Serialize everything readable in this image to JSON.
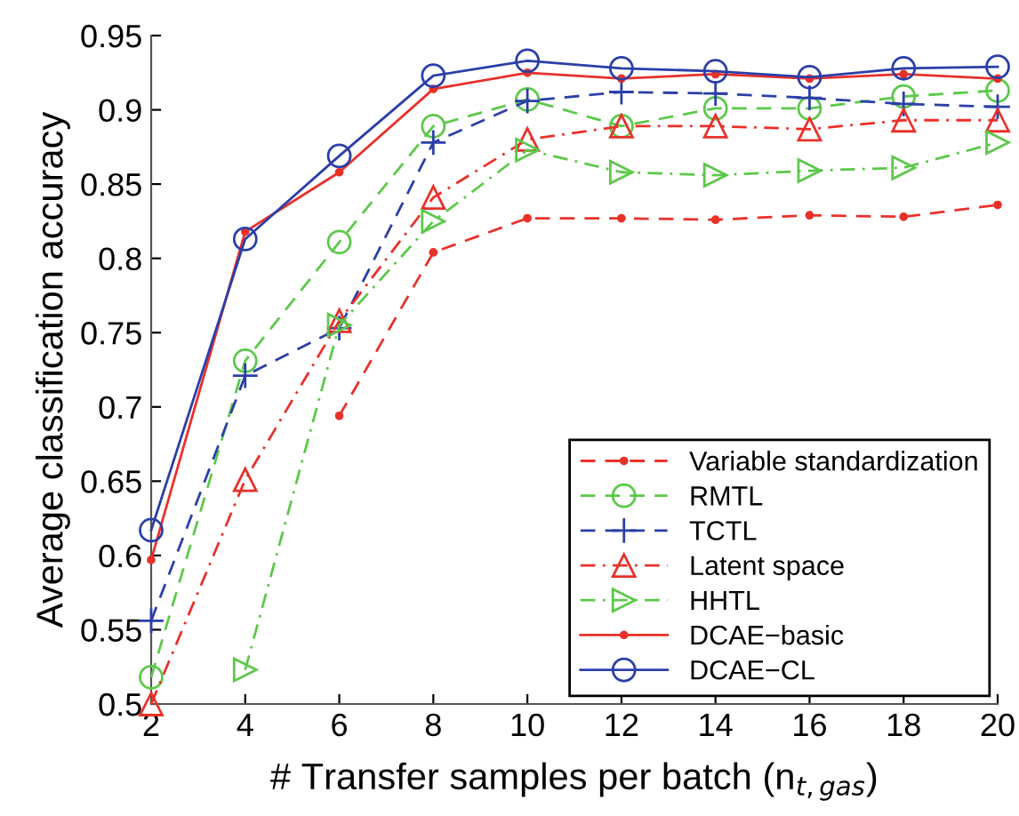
{
  "chart_data": {
    "type": "line",
    "xlabel": "# Transfer samples per batch (n$_{t,gas}$)",
    "ylabel": "Average classification accuracy",
    "x": [
      2,
      4,
      6,
      8,
      10,
      12,
      14,
      16,
      18,
      20
    ],
    "xlim": [
      2,
      20
    ],
    "xticks": [
      2,
      4,
      6,
      8,
      10,
      12,
      14,
      16,
      18,
      20
    ],
    "ylim": [
      0.5,
      0.95
    ],
    "yticks": [
      0.5,
      0.55,
      0.6,
      0.65,
      0.7,
      0.75,
      0.8,
      0.85,
      0.9,
      0.95
    ],
    "grid": false,
    "legend": "bottom right",
    "series": [
      {
        "name": "Variable standardization",
        "color": "#e8312a",
        "marker": "point",
        "line_style": "dashed",
        "values": [
          null,
          null,
          0.694,
          0.804,
          0.827,
          0.827,
          0.826,
          0.829,
          0.828,
          0.836
        ]
      },
      {
        "name": "RMTL",
        "color": "#5cc84a",
        "marker": "circle",
        "line_style": "dashed",
        "values": [
          0.518,
          0.731,
          0.811,
          0.889,
          0.907,
          0.889,
          0.901,
          0.901,
          0.909,
          0.913
        ]
      },
      {
        "name": "TCTL",
        "color": "#2b3fa8",
        "marker": "plus",
        "line_style": "dashed",
        "values": [
          0.556,
          0.721,
          0.753,
          0.878,
          0.906,
          0.912,
          0.911,
          0.908,
          0.904,
          0.902
        ]
      },
      {
        "name": "Latent space",
        "color": "#e8312a",
        "marker": "triangle",
        "line_style": "dashdot",
        "values": [
          0.5,
          0.651,
          0.758,
          0.841,
          0.88,
          0.889,
          0.889,
          0.887,
          0.893,
          0.893
        ]
      },
      {
        "name": "HHTL",
        "color": "#5cc84a",
        "marker": "triangle_right",
        "line_style": "dashdot",
        "values": [
          null,
          0.523,
          0.755,
          0.825,
          0.873,
          0.858,
          0.856,
          0.859,
          0.861,
          0.878
        ]
      },
      {
        "name": "DCAE−basic",
        "color": "#e8312a",
        "marker": "point",
        "line_style": "solid",
        "values": [
          0.597,
          0.818,
          0.858,
          0.914,
          0.925,
          0.921,
          0.924,
          0.921,
          0.924,
          0.921
        ]
      },
      {
        "name": "DCAE−CL",
        "color": "#2b3fa8",
        "marker": "circle",
        "line_style": "solid",
        "values": [
          0.617,
          0.813,
          0.869,
          0.923,
          0.933,
          0.928,
          0.926,
          0.922,
          0.928,
          0.929
        ]
      }
    ]
  }
}
